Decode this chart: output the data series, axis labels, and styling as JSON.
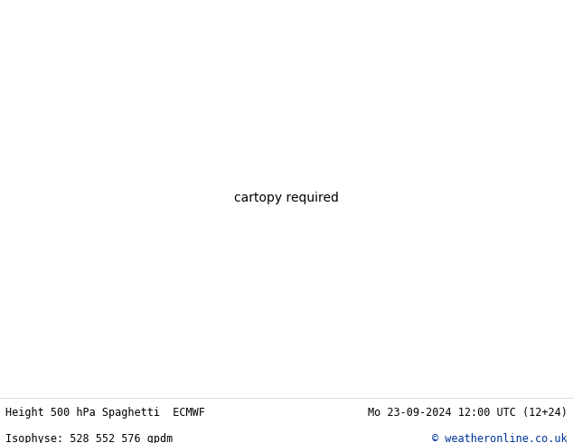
{
  "title_left": "Height 500 hPa Spaghetti  ECMWF",
  "title_right": "Mo 23-09-2024 12:00 UTC (12+24)",
  "subtitle_left": "Isophyse: 528 552 576 gpdm",
  "subtitle_right": "© weatheronline.co.uk",
  "bg_color": "#ffffff",
  "ocean_color": "#e8e8e8",
  "land_color": "#c8f0a0",
  "border_color": "#888888",
  "lake_color": "#e8e8e8",
  "state_border_color": "#888888",
  "country_border_color": "#555555",
  "text_color": "#000000",
  "copyright_color": "#003399",
  "fig_width": 6.34,
  "fig_height": 4.9,
  "dpi": 100,
  "font_size_title": 8.5,
  "font_size_subtitle": 8.5,
  "map_extent": [
    -175,
    -50,
    20,
    85
  ],
  "ensemble_colors": [
    "#ff0000",
    "#cc0000",
    "#ff4400",
    "#ff8800",
    "#ffaa00",
    "#ffff00",
    "#aaff00",
    "#00cc00",
    "#00aa44",
    "#00aaaa",
    "#00ccff",
    "#0088ff",
    "#0000ff",
    "#4400cc",
    "#8800ff",
    "#cc00ff",
    "#ff00cc",
    "#ff0088",
    "#ff44aa",
    "#cc44ff",
    "#00ffcc",
    "#44ffff",
    "#ff6644",
    "#885500"
  ],
  "n_members": 24,
  "line_width": 0.5,
  "line_alpha": 0.9
}
